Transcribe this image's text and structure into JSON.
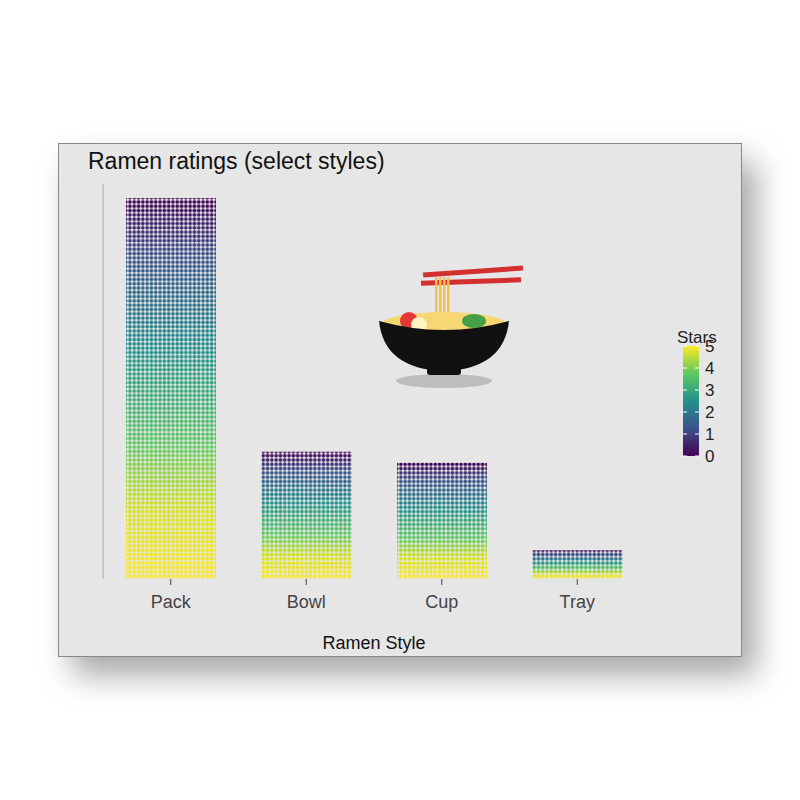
{
  "chart_data": {
    "type": "bar",
    "title": "Ramen ratings (select styles)",
    "x_label": "Ramen Style",
    "categories": [
      "Pack",
      "Bowl",
      "Cup",
      "Tray"
    ],
    "values": [
      1832,
      612,
      559,
      138
    ],
    "ylim": [
      0,
      1900
    ],
    "tick_labels": "x",
    "colorbar": {
      "title": "Stars",
      "range": [
        0,
        5
      ],
      "ticks": [
        0,
        1,
        2,
        3,
        4,
        5
      ]
    }
  }
}
